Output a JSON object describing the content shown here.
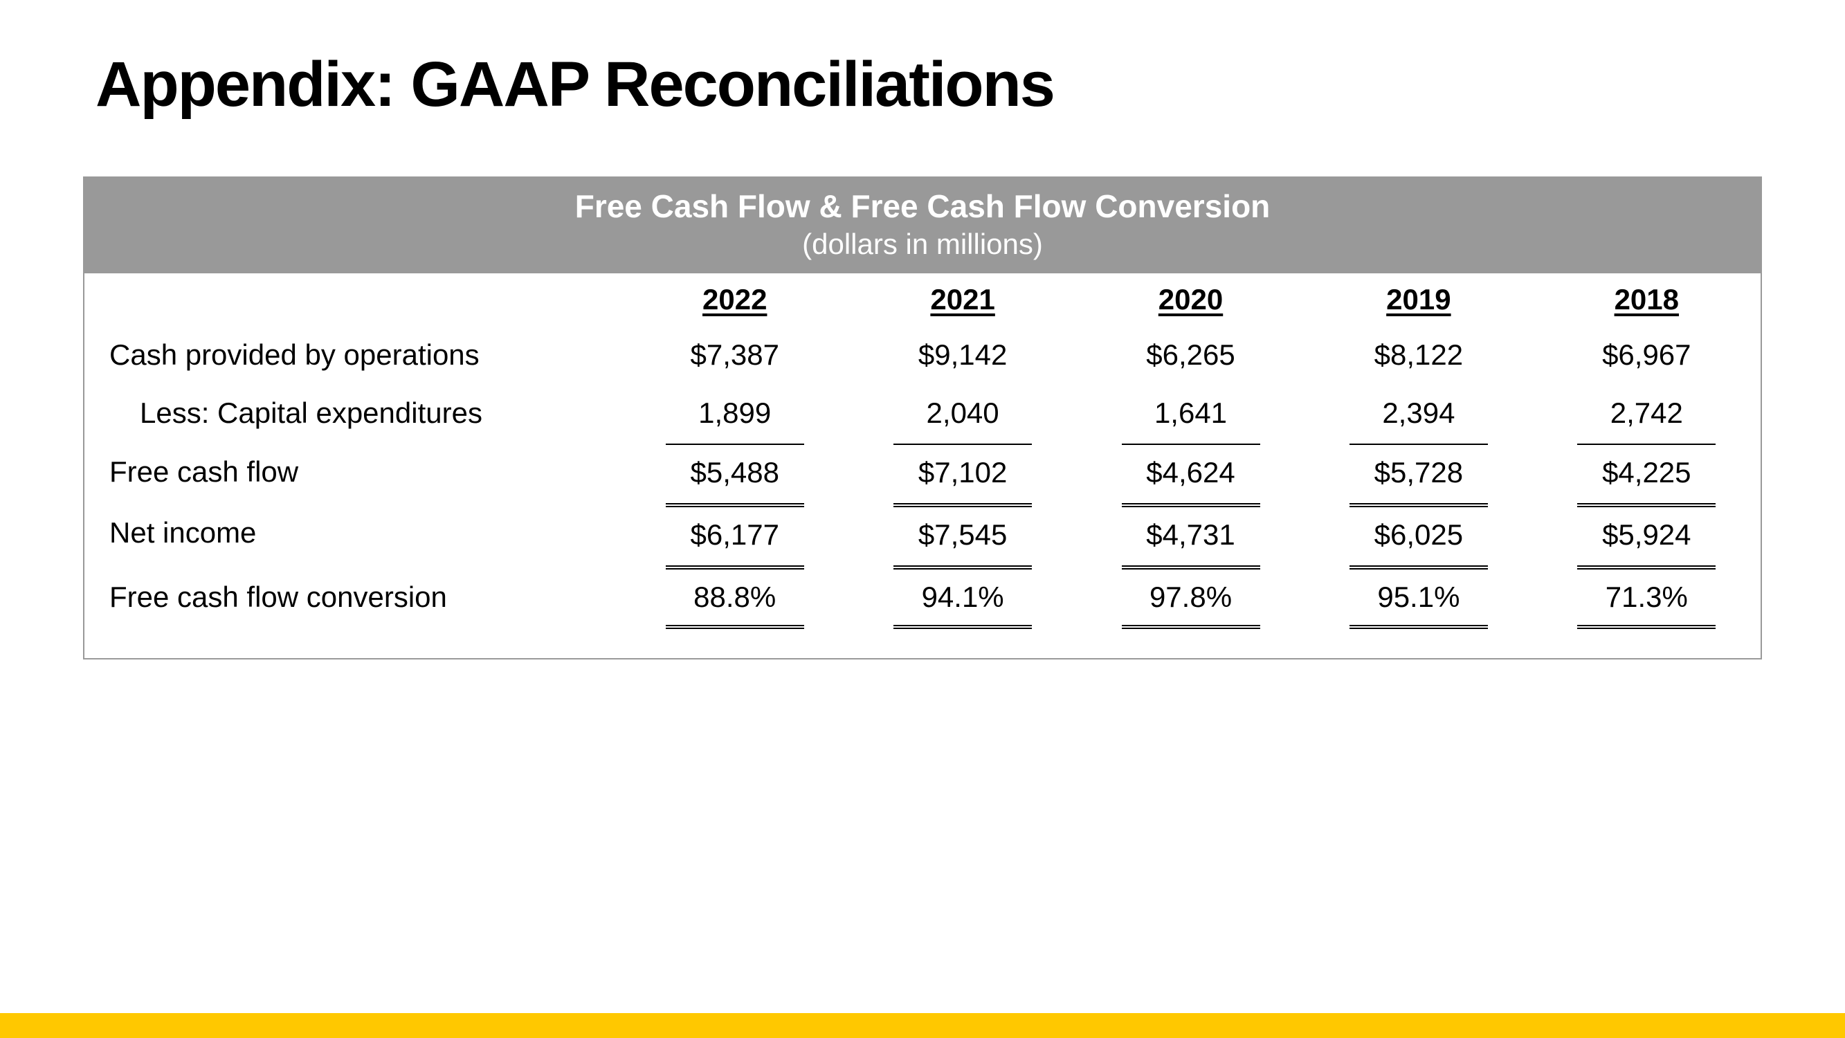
{
  "page": {
    "title": "Appendix: GAAP Reconciliations"
  },
  "table": {
    "header_title": "Free Cash Flow & Free Cash Flow Conversion",
    "header_subtitle": "(dollars in millions)",
    "header_bg_color": "#999999",
    "header_text_color": "#ffffff",
    "columns": [
      "2022",
      "2021",
      "2020",
      "2019",
      "2018"
    ],
    "rows": [
      {
        "label": "Cash provided by operations",
        "indented": false,
        "values": [
          "$7,387",
          "$9,142",
          "$6,265",
          "$8,122",
          "$6,967"
        ]
      },
      {
        "label": "Less: Capital expenditures",
        "indented": true,
        "values": [
          "1,899",
          "2,040",
          "1,641",
          "2,394",
          "2,742"
        ]
      },
      {
        "label": "Free cash flow",
        "indented": false,
        "values": [
          "$5,488",
          "$7,102",
          "$4,624",
          "$5,728",
          "$4,225"
        ]
      },
      {
        "label": "Net income",
        "indented": false,
        "values": [
          "$6,177",
          "$7,545",
          "$4,731",
          "$6,025",
          "$5,924"
        ]
      },
      {
        "label": "Free cash flow conversion",
        "indented": false,
        "values": [
          "88.8%",
          "94.1%",
          "97.8%",
          "95.1%",
          "71.3%"
        ]
      }
    ]
  },
  "styling": {
    "page_bg": "#ffffff",
    "title_color": "#000000",
    "title_fontsize": 92,
    "title_fontweight": 900,
    "body_fontsize": 42,
    "col_header_fontsize": 42,
    "col_header_fontweight": 900,
    "table_border_color": "#999999",
    "rule_color": "#000000",
    "accent_bar_color": "#ffc800",
    "accent_bar_height": 36,
    "font_family": "Arial, Helvetica, sans-serif"
  }
}
